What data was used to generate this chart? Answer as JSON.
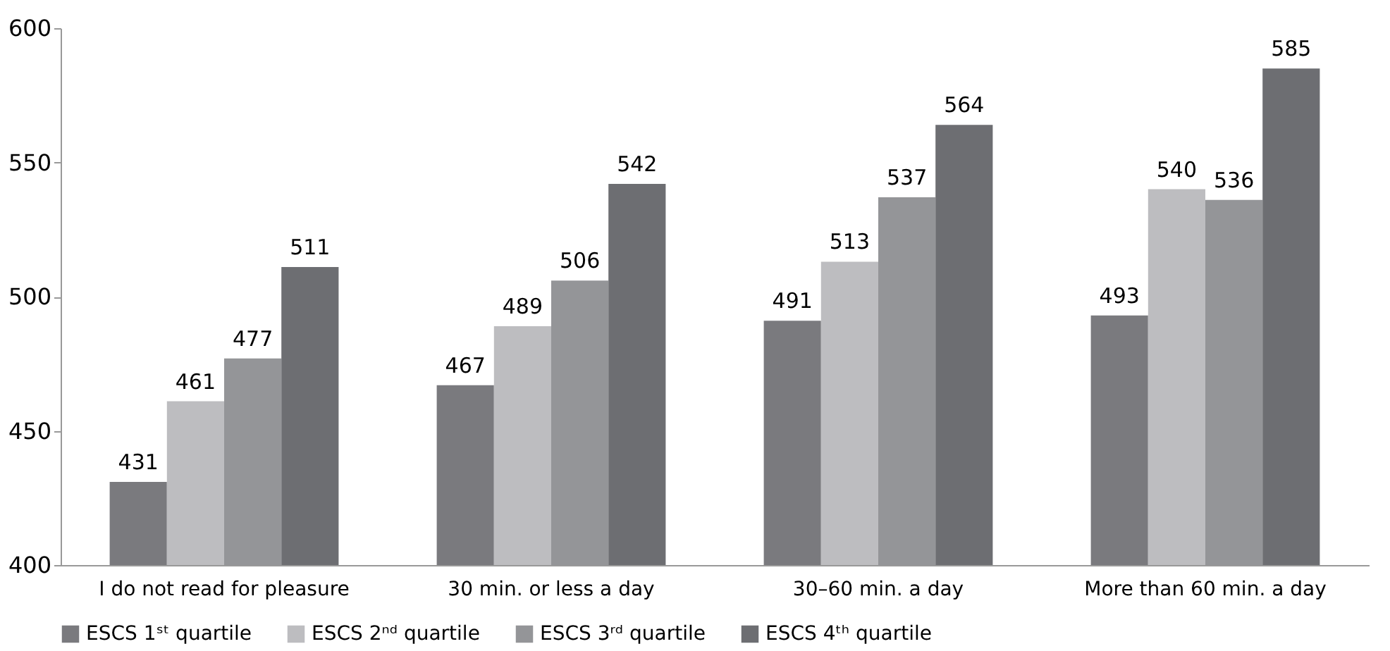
{
  "chart_data": {
    "type": "bar",
    "categories": [
      "I do not read for pleasure",
      "30 min. or less a day",
      "30–60 min. a day",
      "More than 60 min. a day"
    ],
    "series": [
      {
        "name": "ESCS 1ˢᵗ quartile",
        "color": "#7a7a7e",
        "values": [
          431,
          467,
          491,
          493
        ]
      },
      {
        "name": "ESCS 2ⁿᵈ quartile",
        "color": "#bdbdc0",
        "values": [
          461,
          489,
          513,
          540
        ]
      },
      {
        "name": "ESCS 3ʳᵈ quartile",
        "color": "#949598",
        "values": [
          477,
          506,
          537,
          536
        ]
      },
      {
        "name": "ESCS 4ᵗʰ quartile",
        "color": "#6d6e72",
        "values": [
          511,
          542,
          564,
          585
        ]
      }
    ],
    "ylim": [
      400,
      600
    ],
    "yticks": [
      400,
      450,
      500,
      550,
      600
    ],
    "grid": false,
    "legend": "bottom",
    "data_labels": true
  }
}
